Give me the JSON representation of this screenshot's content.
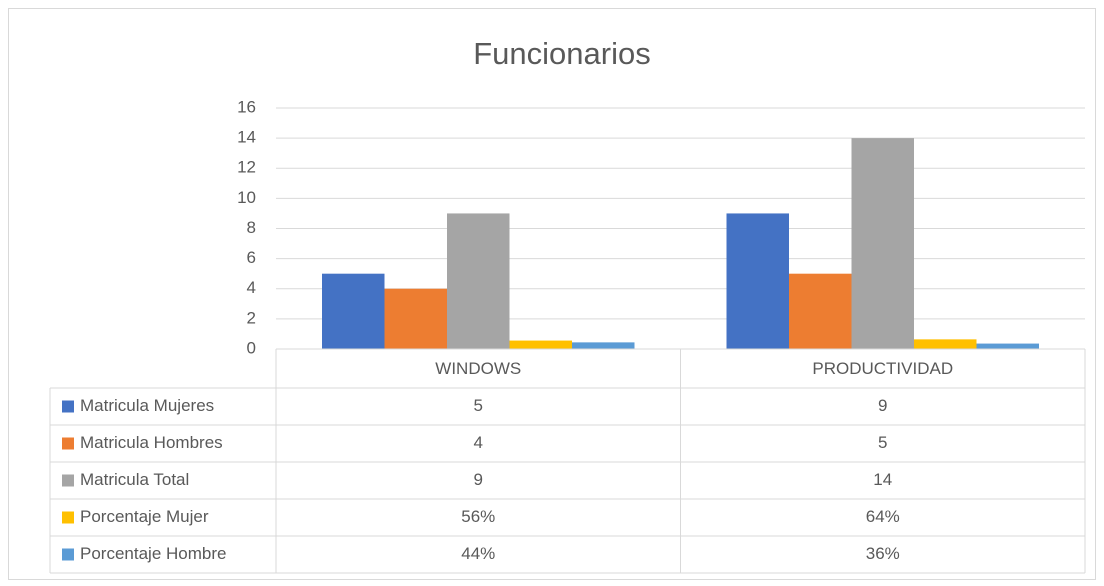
{
  "chart_data": {
    "type": "bar",
    "title": "Funcionarios",
    "categories": [
      "WINDOWS",
      "PRODUCTIVIDAD"
    ],
    "series": [
      {
        "name": "Matricula Mujeres",
        "color": "#4472c4",
        "values": [
          5,
          9
        ]
      },
      {
        "name": "Matricula Hombres",
        "color": "#ed7d31",
        "values": [
          4,
          5
        ]
      },
      {
        "name": "Matricula Total",
        "color": "#a5a5a5",
        "values": [
          9,
          14
        ]
      },
      {
        "name": "Porcentaje Mujer",
        "color": "#ffc000",
        "values": [
          0.56,
          0.64
        ],
        "value_labels": [
          "56%",
          "64%"
        ]
      },
      {
        "name": "Porcentaje Hombre",
        "color": "#5b9bd5",
        "values": [
          0.44,
          0.36
        ],
        "value_labels": [
          "44%",
          "36%"
        ]
      }
    ],
    "ylim": [
      0,
      16
    ],
    "yticks": [
      0,
      2,
      4,
      6,
      8,
      10,
      12,
      14,
      16
    ],
    "grid": true,
    "data_table": true
  }
}
